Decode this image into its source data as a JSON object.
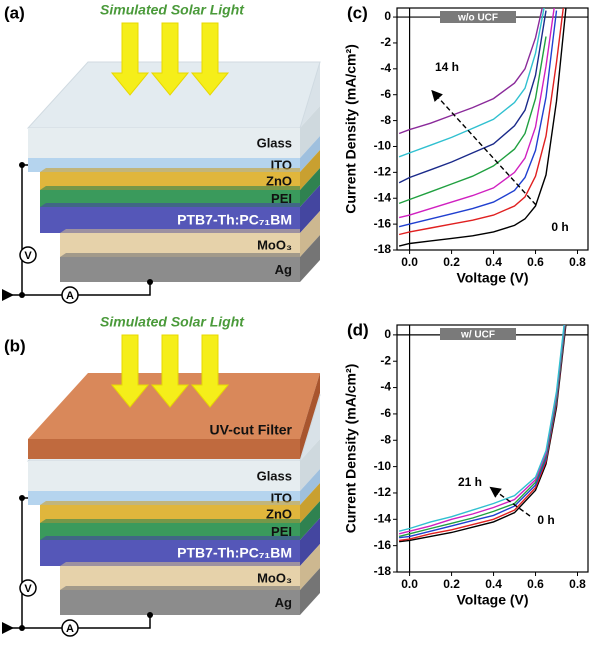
{
  "diagrams": [
    {
      "label": "(a)",
      "light": "Simulated Solar Light",
      "layers": [
        "Glass",
        "ITO",
        "ZnO",
        "PEI",
        "PTB7-Th:PC₇₁BM",
        "MoO₃",
        "Ag"
      ],
      "voltmeter": "V",
      "ammeter": "A"
    },
    {
      "label": "(b)",
      "light": "Simulated Solar Light",
      "filter": "UV-cut Filter",
      "layers": [
        "Glass",
        "ITO",
        "ZnO",
        "PEI",
        "PTB7-Th:PC₇₁BM",
        "MoO₃",
        "Ag"
      ],
      "voltmeter": "V",
      "ammeter": "A"
    }
  ],
  "chart_data": [
    {
      "type": "line",
      "label": "(c)",
      "box_label": "w/o UCF",
      "x_label": "Voltage (V)",
      "y_label": "Current Density (mA/cm²)",
      "x": [
        -0.05,
        0,
        0.1,
        0.2,
        0.3,
        0.4,
        0.5,
        0.55,
        0.6,
        0.65,
        0.7,
        0.75
      ],
      "series": [
        {
          "color": "#000000",
          "values": [
            -17.7,
            -17.5,
            -17.3,
            -17.1,
            -16.9,
            -16.6,
            -16.1,
            -15.6,
            -14.6,
            -12.2,
            -6.5,
            1.5
          ]
        },
        {
          "color": "#e02020",
          "values": [
            -16.8,
            -16.6,
            -16.3,
            -16.0,
            -15.7,
            -15.3,
            -14.6,
            -13.9,
            -12.3,
            -9.2,
            -3.5,
            3
          ]
        },
        {
          "color": "#2040d0",
          "values": [
            -16.2,
            -16.0,
            -15.6,
            -15.2,
            -14.8,
            -14.3,
            -13.4,
            -12.4,
            -10.3,
            -6.2,
            0.5,
            null
          ]
        },
        {
          "color": "#d020c0",
          "values": [
            -15.5,
            -15.3,
            -14.8,
            -14.3,
            -13.8,
            -13.2,
            -12.0,
            -10.9,
            -8.5,
            -3.8,
            2,
            null
          ]
        },
        {
          "color": "#20a040",
          "values": [
            -14.4,
            -14.1,
            -13.5,
            -12.9,
            -12.3,
            -11.5,
            -10.2,
            -9.0,
            -6.3,
            -1.5,
            null,
            null
          ]
        },
        {
          "color": "#1a2a8a",
          "values": [
            -12.8,
            -12.4,
            -11.8,
            -11.2,
            -10.5,
            -9.8,
            -8.4,
            -7.2,
            -4.5,
            0.5,
            null,
            null
          ]
        },
        {
          "color": "#30c0d0",
          "values": [
            -10.8,
            -10.5,
            -9.9,
            -9.3,
            -8.6,
            -7.9,
            -6.6,
            -5.5,
            -2.8,
            1.5,
            null,
            null
          ]
        },
        {
          "color": "#8a2a9a",
          "values": [
            -9.0,
            -8.7,
            -8.2,
            -7.6,
            -7.0,
            -6.3,
            -5.1,
            -4.0,
            -1.6,
            2,
            null,
            null
          ]
        }
      ],
      "annotations": [
        "14 h",
        "0 h"
      ],
      "xlim": [
        -0.06,
        0.85
      ],
      "ylim": [
        -18,
        0.7
      ],
      "xticks": [
        {
          "value": 0,
          "label": "0.0"
        },
        {
          "value": 0.2,
          "label": "0.2"
        },
        {
          "value": 0.4,
          "label": "0.4"
        },
        {
          "value": 0.6,
          "label": "0.6"
        },
        {
          "value": 0.8,
          "label": "0.8"
        }
      ],
      "yticks": [
        0,
        -2,
        -4,
        -6,
        -8,
        -10,
        -12,
        -14,
        -16,
        -18
      ]
    },
    {
      "type": "line",
      "label": "(d)",
      "box_label": "w/ UCF",
      "x_label": "Voltage (V)",
      "y_label": "Current Density (mA/cm²)",
      "x": [
        -0.05,
        0,
        0.1,
        0.2,
        0.3,
        0.4,
        0.5,
        0.6,
        0.65,
        0.7,
        0.75,
        0.8
      ],
      "series": [
        {
          "color": "#000000",
          "values": [
            -15.7,
            -15.6,
            -15.3,
            -15.0,
            -14.6,
            -14.2,
            -13.5,
            -11.8,
            -9.8,
            -5.5,
            1.5,
            null
          ]
        },
        {
          "color": "#e02020",
          "values": [
            -15.6,
            -15.5,
            -15.1,
            -14.8,
            -14.4,
            -14.0,
            -13.3,
            -11.6,
            -9.6,
            -5.2,
            1.8,
            null
          ]
        },
        {
          "color": "#2040d0",
          "values": [
            -15.4,
            -15.3,
            -14.9,
            -14.5,
            -14.1,
            -13.7,
            -13.0,
            -11.4,
            -9.4,
            -5.0,
            2.0,
            null
          ]
        },
        {
          "color": "#20a040",
          "values": [
            -15.3,
            -15.1,
            -14.7,
            -14.3,
            -13.9,
            -13.4,
            -12.8,
            -11.2,
            -9.2,
            -4.8,
            2.2,
            null
          ]
        },
        {
          "color": "#d020c0",
          "values": [
            -15.1,
            -14.9,
            -14.5,
            -14.0,
            -13.6,
            -13.1,
            -12.5,
            -11.0,
            -9.0,
            -4.5,
            2.5,
            null
          ]
        },
        {
          "color": "#30c0d0",
          "values": [
            -14.9,
            -14.7,
            -14.2,
            -13.8,
            -13.3,
            -12.8,
            -12.2,
            -10.8,
            -8.8,
            -4.3,
            2.7,
            null
          ]
        }
      ],
      "annotations": [
        "21 h",
        "0 h"
      ],
      "xlim": [
        -0.06,
        0.85
      ],
      "ylim": [
        -18,
        0.75
      ],
      "xticks": [
        {
          "value": 0,
          "label": "0.0"
        },
        {
          "value": 0.2,
          "label": "0.2"
        },
        {
          "value": 0.4,
          "label": "0.4"
        },
        {
          "value": 0.6,
          "label": "0.6"
        },
        {
          "value": 0.8,
          "label": "0.8"
        }
      ],
      "yticks": [
        0,
        -2,
        -4,
        -6,
        -8,
        -10,
        -12,
        -14,
        -16,
        -18
      ]
    }
  ]
}
